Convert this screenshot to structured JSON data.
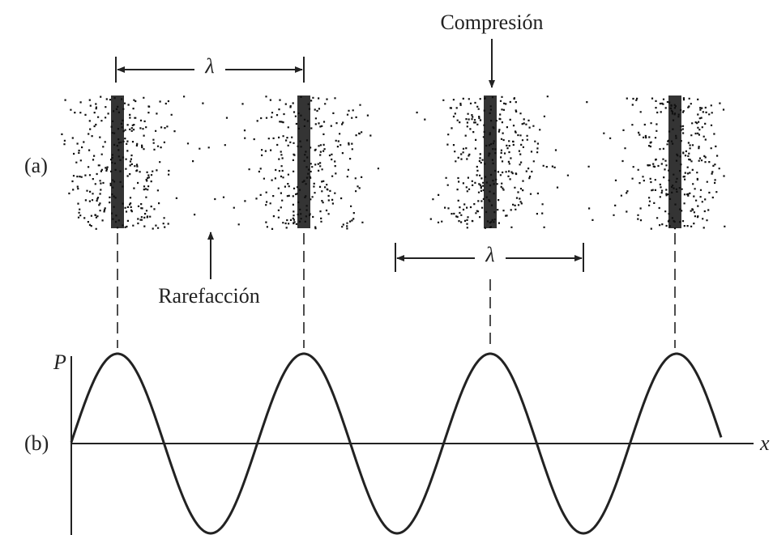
{
  "labels": {
    "compression": "Compresión",
    "lambda_top": "λ",
    "lambda_bottom": "λ",
    "rarefaction": "Rarefacción",
    "part_a": "(a)",
    "part_b": "(b)",
    "axis_y": "P",
    "axis_x": "x"
  }
}
